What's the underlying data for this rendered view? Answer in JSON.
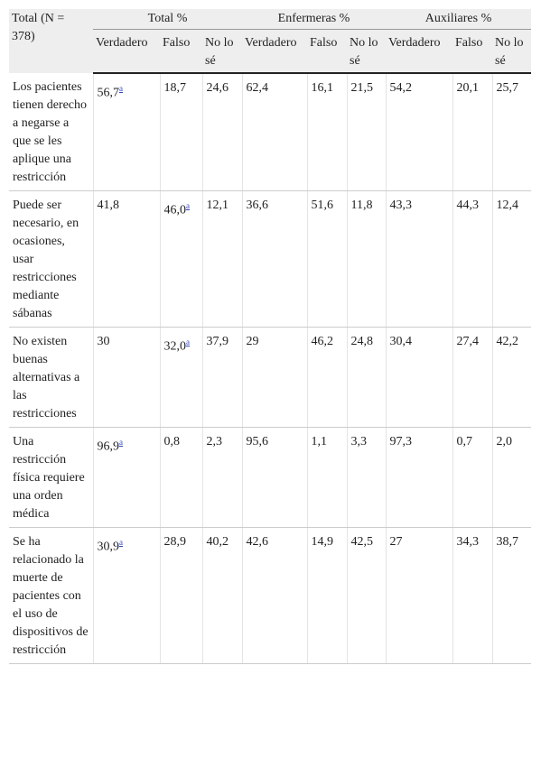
{
  "table": {
    "header": {
      "corner": "Total (N = 378)",
      "groups": [
        "Total %",
        "Enfermeras %",
        "Auxiliares %"
      ],
      "subheaders": [
        "Verdadero",
        "Falso",
        "No lo sé",
        "Verdadero",
        "Falso",
        "No lo sé",
        "Verdadero",
        "Falso",
        "No lo sé"
      ]
    },
    "rows": [
      {
        "label": "Los pacientes tienen derecho a negarse a que se les aplique una restricción",
        "cells": [
          {
            "text": "56,7",
            "sup": "a"
          },
          "18,7",
          "24,6",
          "62,4",
          "16,1",
          "21,5",
          "54,2",
          "20,1",
          "25,7"
        ]
      },
      {
        "label": "Puede ser necesario, en ocasiones, usar restricciones mediante sábanas",
        "cells": [
          "41,8",
          {
            "text": "46,0",
            "sup": "a"
          },
          "12,1",
          "36,6",
          "51,6",
          "11,8",
          "43,3",
          "44,3",
          "12,4"
        ]
      },
      {
        "label": "No existen buenas alternativas a las restricciones",
        "cells": [
          "30",
          {
            "text": "32,0",
            "sup": "a"
          },
          "37,9",
          "29",
          "46,2",
          "24,8",
          "30,4",
          "27,4",
          "42,2"
        ]
      },
      {
        "label": "Una restricción física requiere una orden médica",
        "cells": [
          {
            "text": "96,9",
            "sup": "a"
          },
          "0,8",
          "2,3",
          "95,6",
          "1,1",
          "3,3",
          "97,3",
          "0,7",
          "2,0"
        ]
      },
      {
        "label": "Se ha relacionado la muerte de pacientes con el uso de dispositivos de restricción",
        "cells": [
          {
            "text": "30,9",
            "sup": "a"
          },
          "28,9",
          "40,2",
          "42,6",
          "14,9",
          "42,5",
          "27",
          "34,3",
          "38,7"
        ]
      }
    ]
  }
}
